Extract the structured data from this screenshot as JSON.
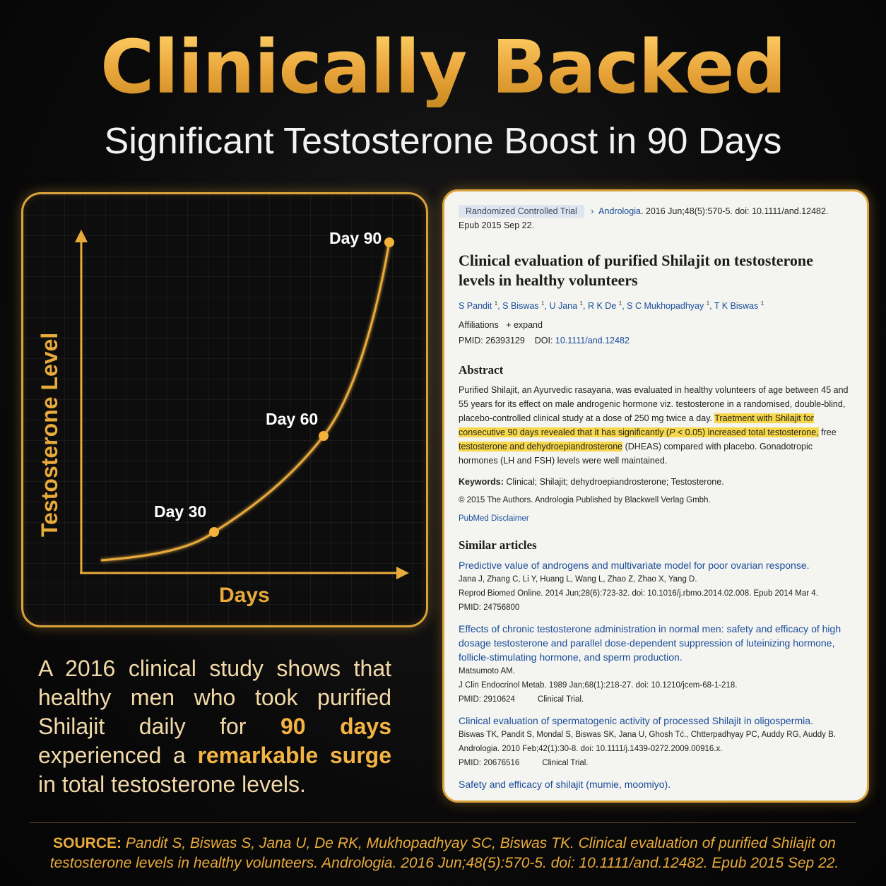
{
  "header": {
    "title": "Clinically Backed",
    "subtitle": "Significant Testosterone Boost in 90 Days"
  },
  "chart": {
    "ylabel": "Testosterone Level",
    "xlabel": "Days",
    "points": [
      {
        "label": "Day 30"
      },
      {
        "label": "Day 60"
      },
      {
        "label": "Day 90"
      }
    ],
    "colors": {
      "curve": "#e9aa3c",
      "axis": "#e9aa3c",
      "point": "#f2b13a"
    }
  },
  "chart_data": {
    "type": "line",
    "title": "",
    "xlabel": "Days",
    "ylabel": "Testosterone Level",
    "x": [
      0,
      30,
      60,
      90
    ],
    "point_labels": [
      "Day 30",
      "Day 60",
      "Day 90"
    ]
  },
  "paper": {
    "badge": "Randomized Controlled Trial",
    "journal_ref": "Andrologia. 2016 Jun;48(5):570-5. doi: 10.1111/and.12482.",
    "journal_name": "Andrologia",
    "epub": "Epub 2015 Sep 22.",
    "title": "Clinical evaluation of purified Shilajit on testosterone levels in healthy volunteers",
    "authors": [
      {
        "name": "S Pandit",
        "sup": "1"
      },
      {
        "name": "S Biswas",
        "sup": "1"
      },
      {
        "name": "U Jana",
        "sup": "1"
      },
      {
        "name": "R K De",
        "sup": "1"
      },
      {
        "name": "S C Mukhopadhyay",
        "sup": "1"
      },
      {
        "name": "T K Biswas",
        "sup": "1"
      }
    ],
    "affiliations_label": "Affiliations",
    "expand_label": "+ expand",
    "pmid_label": "PMID: 26393129",
    "doi_label": "DOI:",
    "doi_link": "10.1111/and.12482",
    "abstract_heading": "Abstract",
    "abstract_part1": "Purified Shilajit, an Ayurvedic rasayana, was evaluated in healthy volunteers of age between 45 and 55 years for its effect on male androgenic hormone viz. testosterone in a randomised, double-blind, placebo-controlled clinical study at a dose of 250 mg twice a day. ",
    "abstract_hl1": "Traetment with Shilajit for consecutive 90 days revealed that it has significantly (",
    "abstract_hl_p": "P",
    "abstract_hl2": " < 0.05) increased total testosterone,",
    "abstract_mid": " free ",
    "abstract_hl3": "testosterone and dehydroepiandrosterone",
    "abstract_part2": " (DHEAS) compared with placebo. Gonadotropic hormones (LH and FSH) levels were well maintained.",
    "keywords_label": "Keywords:",
    "keywords": " Clinical; Shilajit; dehydroepiandrosterone; Testosterone.",
    "copyright": "© 2015 The Authors. Andrologia Published by Blackwell Verlag Gmbh.",
    "disclaimer": "PubMed Disclaimer",
    "similar_heading": "Similar articles",
    "similar": [
      {
        "title": "Predictive value of androgens and multivariate model for poor ovarian response.",
        "authors": "Jana J, Zhang C, Li Y, Huang L, Wang L, Zhao Z, Zhao X, Yang D.",
        "ref": "Reprod Biomed Online. 2014 Jun;28(6):723-32. doi: 10.1016/j.rbmo.2014.02.008. Epub 2014 Mar 4.",
        "pmid": "PMID: 24756800",
        "type": ""
      },
      {
        "title": "Effects of chronic testosterone administration in normal men: safety and efficacy of high dosage testosterone and parallel dose-dependent suppression of luteinizing hormone, follicle-stimulating hormone, and sperm production.",
        "authors": "Matsumoto AM.",
        "ref": "J Clin Endocrinol Metab. 1989 Jan;68(1):218-27. doi: 10.1210/jcem-68-1-218.",
        "pmid": "PMID: 2910624",
        "type": "Clinical Trial."
      },
      {
        "title": "Clinical evaluation of spermatogenic activity of processed Shilajit in oligospermia.",
        "authors": "Biswas TK, Pandit S, Mondal S, Biswas SK, Jana U, Ghosh Tć., Chtterpadhyay PC, Auddy RG, Auddy B.",
        "ref": "Andrologia. 2010 Feb;42(1):30-8. doi: 10.1111/j.1439-0272.2009.00916.x.",
        "pmid": "PMID: 20676516",
        "type": "Clinical Trial."
      },
      {
        "title": "Safety and efficacy of shilajit (mumie, moomiyo).",
        "authors": "",
        "ref": "",
        "pmid": "",
        "type": ""
      }
    ]
  },
  "claim": {
    "part1": "A 2016 clinical study shows that healthy men who took purified Shilajit daily for ",
    "em1": "90 days",
    "part2": " experienced a ",
    "em2": "remarkable surge",
    "part3": " in total testosterone levels."
  },
  "source": {
    "label": "SOURCE:",
    "text": " Pandit S, Biswas S, Jana U, De RK, Mukhopadhyay SC, Biswas TK. Clinical evaluation of purified Shilajit on testosterone levels in healthy volunteers. Andrologia. 2016 Jun;48(5):570-5. doi: 10.1111/and.12482. Epub 2015 Sep 22."
  }
}
